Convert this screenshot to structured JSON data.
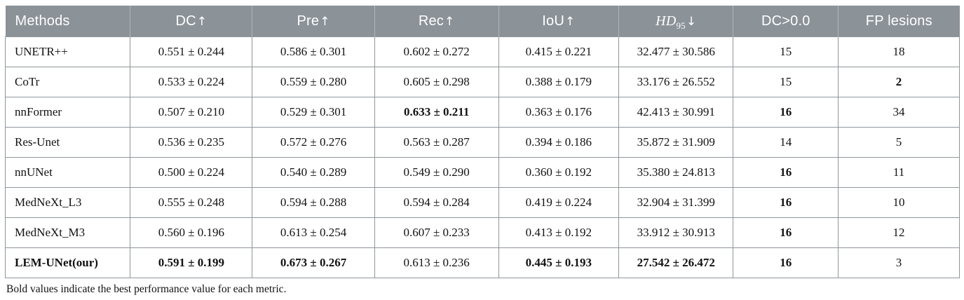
{
  "colors": {
    "header_bg": "#8b9298",
    "header_text": "#ffffff",
    "grid_line": "#8f969c",
    "body_text": "#121212"
  },
  "table": {
    "columns": [
      {
        "label": "Methods",
        "align": "left"
      },
      {
        "label": "DC",
        "arrow": "↑"
      },
      {
        "label": "Pre",
        "arrow": "↑"
      },
      {
        "label": "Rec",
        "arrow": "↑"
      },
      {
        "label": "IoU",
        "arrow": "↑"
      },
      {
        "label": "HD",
        "sub": "95",
        "italic": true,
        "arrow": "↓"
      },
      {
        "label": "DC>0.0"
      },
      {
        "label": "FP lesions"
      }
    ],
    "rows": [
      {
        "cells": [
          "UNETR++",
          "0.551 ± 0.244",
          "0.586 ± 0.301",
          "0.602 ± 0.272",
          "0.415 ± 0.221",
          "32.477 ± 30.586",
          "15",
          "18"
        ],
        "bold": [
          false,
          false,
          false,
          false,
          false,
          false,
          false,
          false
        ]
      },
      {
        "cells": [
          "CoTr",
          "0.533 ± 0.224",
          "0.559 ± 0.280",
          "0.605 ± 0.298",
          "0.388 ± 0.179",
          "33.176 ± 26.552",
          "15",
          "2"
        ],
        "bold": [
          false,
          false,
          false,
          false,
          false,
          false,
          false,
          true
        ]
      },
      {
        "cells": [
          "nnFormer",
          "0.507 ± 0.210",
          "0.529 ± 0.301",
          "0.633 ± 0.211",
          "0.363 ± 0.176",
          "42.413 ± 30.991",
          "16",
          "34"
        ],
        "bold": [
          false,
          false,
          false,
          true,
          false,
          false,
          true,
          false
        ]
      },
      {
        "cells": [
          "Res-Unet",
          "0.536 ± 0.235",
          "0.572 ± 0.276",
          "0.563 ± 0.287",
          "0.394 ± 0.186",
          "35.872 ± 31.909",
          "14",
          "5"
        ],
        "bold": [
          false,
          false,
          false,
          false,
          false,
          false,
          false,
          false
        ]
      },
      {
        "cells": [
          "nnUNet",
          "0.500 ± 0.224",
          "0.540 ± 0.289",
          "0.549 ± 0.290",
          "0.360 ± 0.192",
          "35.380 ± 24.813",
          "16",
          "11"
        ],
        "bold": [
          false,
          false,
          false,
          false,
          false,
          false,
          true,
          false
        ]
      },
      {
        "cells": [
          "MedNeXt_L3",
          "0.555 ± 0.248",
          "0.594 ± 0.288",
          "0.594 ± 0.284",
          "0.419 ± 0.224",
          "32.904 ± 31.399",
          "16",
          "10"
        ],
        "bold": [
          false,
          false,
          false,
          false,
          false,
          false,
          true,
          false
        ]
      },
      {
        "cells": [
          "MedNeXt_M3",
          "0.560 ± 0.196",
          "0.613 ± 0.254",
          "0.607 ± 0.233",
          "0.413 ± 0.192",
          "33.912 ± 30.913",
          "16",
          "12"
        ],
        "bold": [
          false,
          false,
          false,
          false,
          false,
          false,
          true,
          false
        ]
      },
      {
        "cells": [
          "LEM-UNet(our)",
          "0.591 ± 0.199",
          "0.673 ± 0.267",
          "0.613 ± 0.236",
          "0.445 ± 0.193",
          "27.542 ± 26.472",
          "16",
          "3"
        ],
        "bold": [
          true,
          true,
          true,
          false,
          true,
          true,
          true,
          false
        ]
      }
    ]
  },
  "footnote": "Bold values indicate the best performance value for each metric."
}
